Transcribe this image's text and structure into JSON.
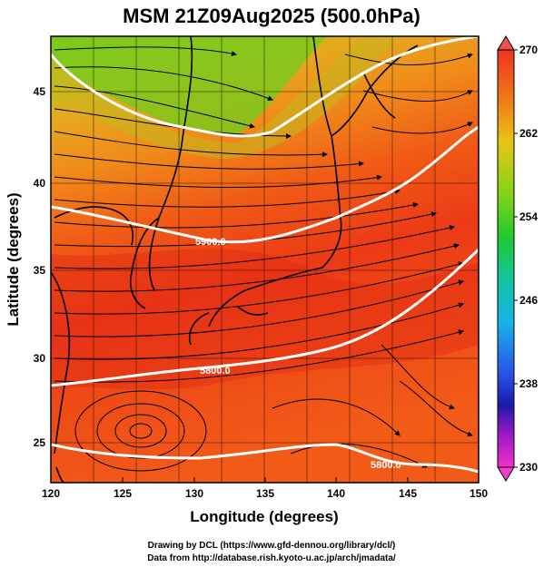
{
  "title": "MSM 21Z09Aug2025 (500.0hPa)",
  "xlabel": "Longitude (degrees)",
  "ylabel": "Latitude  (degrees)",
  "x_ticks": [
    "120",
    "125",
    "130",
    "135",
    "140",
    "145",
    "150"
  ],
  "y_ticks": [
    "25",
    "30",
    "35",
    "40",
    "45"
  ],
  "colorbar": {
    "ticks": [
      "270",
      "262",
      "254",
      "246",
      "238",
      "230"
    ],
    "min": 230,
    "max": 270
  },
  "contours": [
    {
      "label": "5900.0"
    },
    {
      "label": "5800.0"
    },
    {
      "label": "5800.0"
    }
  ],
  "credits": {
    "line1": "Drawing by DCL (https://www.gfd-dennou.org/library/dcl/)",
    "line2": "Data from http://database.rish.kyoto-u.ac.jp/arch/jmadata/"
  }
}
